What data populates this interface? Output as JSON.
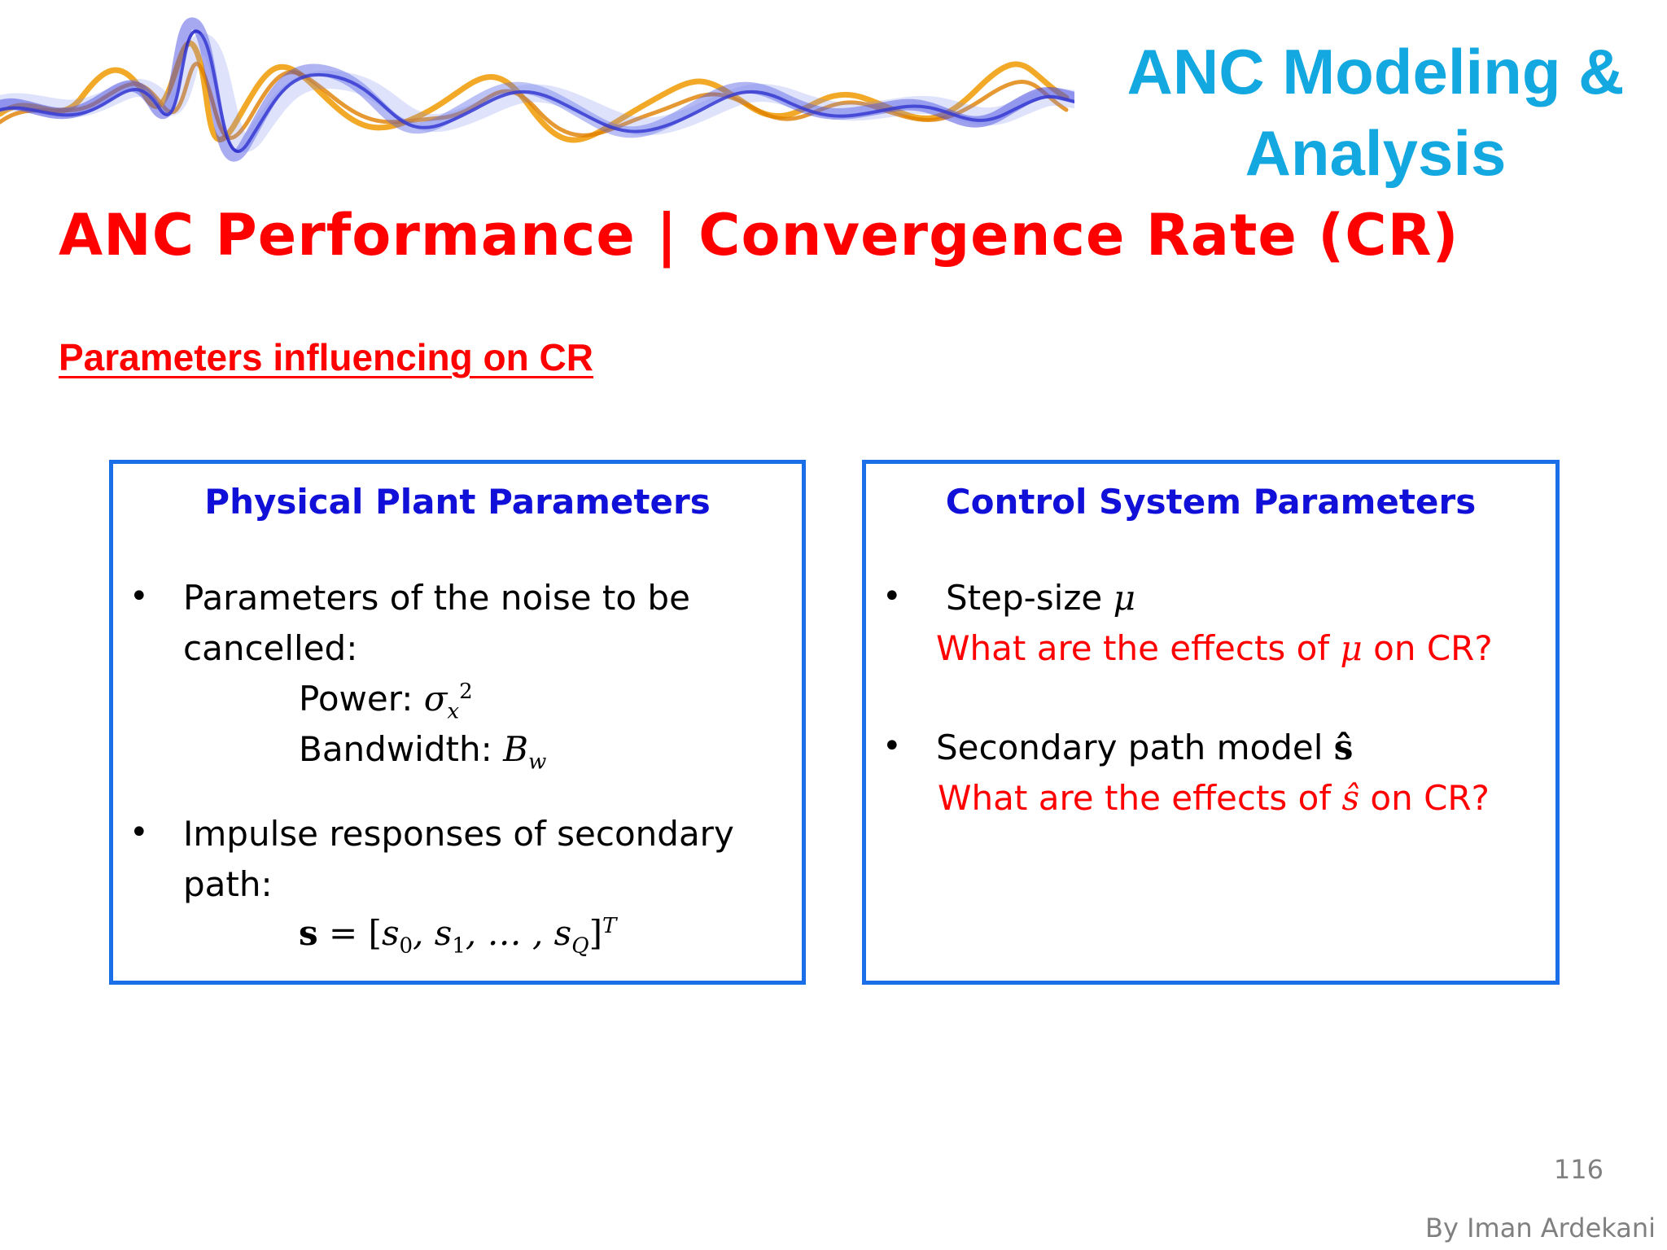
{
  "header": {
    "course_title_line1": "ANC Modeling &",
    "course_title_line2": "Analysis",
    "banner_icon": "sound-wave-banner"
  },
  "slide": {
    "title": "ANC Performance | Convergence Rate (CR)",
    "subheading": "Parameters influencing on CR"
  },
  "left_box": {
    "title": "Physical Plant Parameters",
    "bullet1_line1": "Parameters of the noise to be",
    "bullet1_line2": "cancelled:",
    "power_label": "Power: ",
    "bandwidth_label": "Bandwidth: ",
    "bullet2_line1": "Impulse responses of secondary",
    "bullet2_line2": "path:"
  },
  "right_box": {
    "title": "Control System Parameters",
    "bullet1": "Step-size ",
    "q1_prefix": "What are the effects of ",
    "q_suffix": " on CR?",
    "bullet2": "Secondary path model ",
    "q2_prefix": "What are the effects of "
  },
  "footer": {
    "page_number": "116",
    "author": "By Iman Ardekani"
  },
  "colors": {
    "title_red": "#ff0000",
    "course_blue": "#14a8e0",
    "box_border": "#1a6fe8",
    "box_title": "#1010d8"
  }
}
